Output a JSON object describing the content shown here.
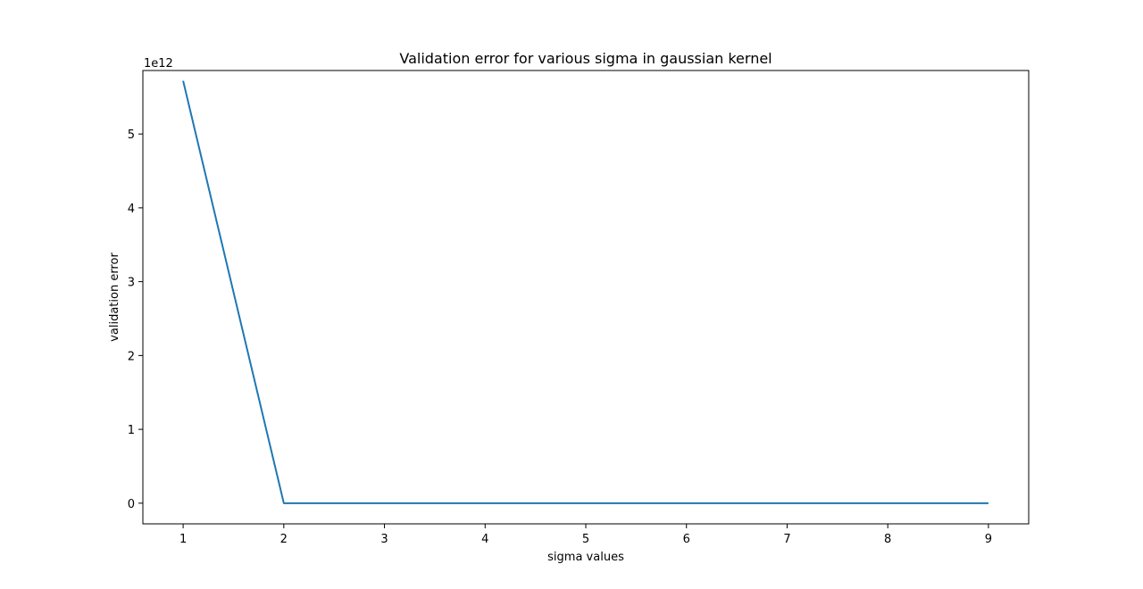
{
  "chart_data": {
    "type": "line",
    "title": "Validation error for various sigma in gaussian kernel",
    "xlabel": "sigma values",
    "ylabel": "validation error",
    "y_offset_label": "1e12",
    "xlim": [
      0.6,
      9.4
    ],
    "ylim": [
      -0.28,
      5.86
    ],
    "x_ticks": [
      1,
      2,
      3,
      4,
      5,
      6,
      7,
      8,
      9
    ],
    "x_tick_labels": [
      "1",
      "2",
      "3",
      "4",
      "5",
      "6",
      "7",
      "8",
      "9"
    ],
    "y_ticks": [
      0,
      1,
      2,
      3,
      4,
      5
    ],
    "y_tick_labels": [
      "0",
      "1",
      "2",
      "3",
      "4",
      "5"
    ],
    "y_scale_multiplier": 1000000000000.0,
    "grid": false,
    "series": [
      {
        "color": "#1f77b4",
        "x": [
          1,
          2,
          3,
          4,
          5,
          6,
          7,
          8,
          9
        ],
        "y": [
          5.72,
          0.0,
          0.0,
          0.0,
          0.0,
          0.0,
          0.0,
          0.0,
          0.0
        ]
      }
    ]
  }
}
